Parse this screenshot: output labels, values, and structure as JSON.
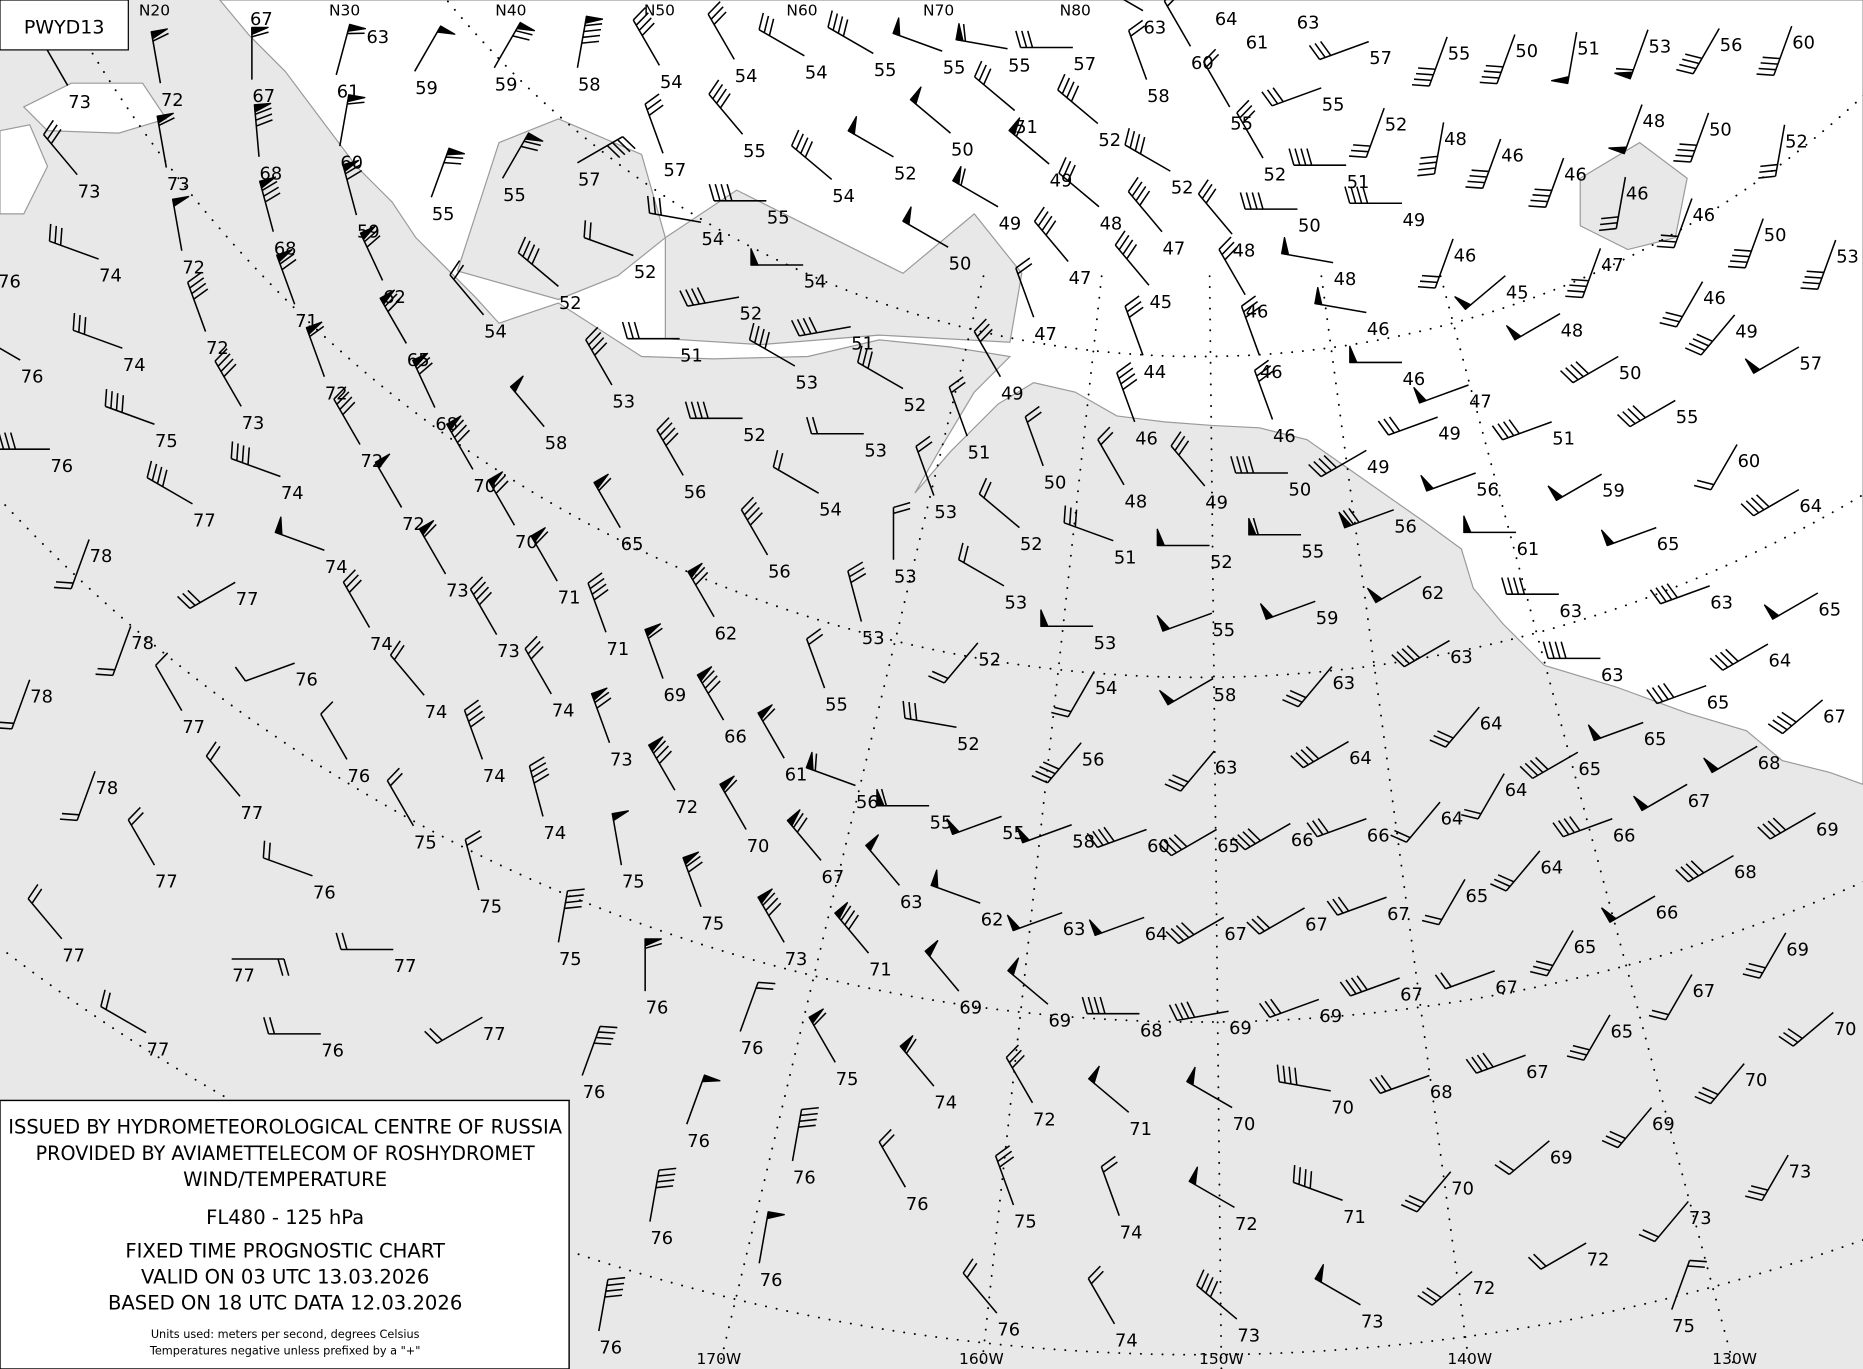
{
  "chart_id": "PWYD13",
  "legend": {
    "line1": "ISSUED BY HYDROMETEOROLOGICAL CENTRE OF RUSSIA",
    "line2": "PROVIDED BY AVIAMETTELECOM OF ROSHYDROMET",
    "line3": "WIND/TEMPERATURE",
    "level": "FL480 - 125 hPa",
    "chart_type": "FIXED TIME PROGNOSTIC CHART",
    "valid": "VALID ON 03 UTC 13.03.2026",
    "based": "BASED ON 18 UTC DATA 12.03.2026",
    "units": "Units used: meters per second, degrees Celsius",
    "note": "Temperatures negative unless prefixed by a \"+\""
  },
  "top_labels": [
    "N20",
    "N30",
    "N40",
    "N50",
    "N60",
    "N70",
    "N80"
  ],
  "bottom_labels": [
    "170W",
    "160W",
    "150W",
    "140W",
    "130W"
  ],
  "colors": {
    "ocean": "#e8e8e8",
    "land": "#ffffff",
    "coast": "#9a9a9a",
    "ink": "#000000"
  },
  "stations_format": [
    "temperature",
    "wind_direction_deg",
    "wind_speed_mps"
  ],
  "stations": [
    [
      "73",
      330,
      15
    ],
    [
      "73",
      320,
      15
    ],
    [
      "74",
      290,
      15
    ],
    [
      "76",
      300,
      10
    ],
    [
      "76",
      300,
      10
    ],
    [
      "74",
      290,
      15
    ],
    [
      "76",
      270,
      20
    ],
    [
      "75",
      290,
      20
    ],
    [
      "77",
      300,
      20
    ],
    [
      "78",
      200,
      10
    ],
    [
      "78",
      200,
      10
    ],
    [
      "78",
      200,
      10
    ],
    [
      "77",
      240,
      15
    ],
    [
      "76",
      250,
      5
    ],
    [
      "77",
      330,
      5
    ],
    [
      "78",
      200,
      10
    ],
    [
      "77",
      320,
      10
    ],
    [
      "77",
      330,
      10
    ],
    [
      "77",
      320,
      10
    ],
    [
      "77",
      90,
      10
    ],
    [
      "77",
      300,
      10
    ],
    [
      "72",
      350,
      30
    ],
    [
      "73",
      350,
      30
    ],
    [
      "72",
      350,
      25
    ],
    [
      "72",
      340,
      20
    ],
    [
      "73",
      330,
      20
    ],
    [
      "74",
      290,
      20
    ],
    [
      "74",
      290,
      25
    ],
    [
      "74",
      330,
      15
    ],
    [
      "74",
      320,
      10
    ],
    [
      "76",
      330,
      5
    ],
    [
      "75",
      330,
      10
    ],
    [
      "76",
      290,
      10
    ],
    [
      "77",
      270,
      10
    ],
    [
      "75",
      345,
      10
    ],
    [
      "76",
      270,
      10
    ],
    [
      "77",
      240,
      10
    ],
    [
      "67",
      0,
      30
    ],
    [
      "68",
      355,
      40
    ],
    [
      "68",
      345,
      40
    ],
    [
      "71",
      340,
      35
    ],
    [
      "72",
      340,
      30
    ],
    [
      "72",
      330,
      20
    ],
    [
      "72",
      330,
      25
    ],
    [
      "73",
      330,
      30
    ],
    [
      "73",
      330,
      20
    ],
    [
      "74",
      330,
      15
    ],
    [
      "74",
      340,
      20
    ],
    [
      "74",
      345,
      20
    ],
    [
      "75",
      10,
      20
    ],
    [
      "75",
      350,
      25
    ],
    [
      "76",
      20,
      20
    ],
    [
      "76",
      0,
      30
    ],
    [
      "61",
      15,
      30
    ],
    [
      "60",
      10,
      30
    ],
    [
      "59",
      345,
      35
    ],
    [
      "62",
      335,
      35
    ],
    [
      "65",
      330,
      35
    ],
    [
      "68",
      335,
      35
    ],
    [
      "70",
      330,
      40
    ],
    [
      "70",
      330,
      35
    ],
    [
      "71",
      330,
      30
    ],
    [
      "71",
      340,
      20
    ],
    [
      "69",
      340,
      30
    ],
    [
      "73",
      340,
      35
    ],
    [
      "72",
      330,
      40
    ],
    [
      "70",
      330,
      30
    ],
    [
      "75",
      340,
      35
    ],
    [
      "73",
      330,
      40
    ],
    [
      "76",
      20,
      10
    ],
    [
      "76",
      20,
      25
    ],
    [
      "59",
      30,
      25
    ],
    [
      "59",
      30,
      35
    ],
    [
      "58",
      10,
      45
    ],
    [
      "55",
      20,
      35
    ],
    [
      "55",
      30,
      35
    ],
    [
      "57",
      60,
      20
    ],
    [
      "57",
      340,
      15
    ],
    [
      "54",
      320,
      10
    ],
    [
      "52",
      310,
      20
    ],
    [
      "52",
      290,
      10
    ],
    [
      "54",
      280,
      15
    ],
    [
      "51",
      270,
      15
    ],
    [
      "52",
      260,
      20
    ],
    [
      "54",
      270,
      25
    ],
    [
      "55",
      270,
      20
    ],
    [
      "55",
      320,
      20
    ],
    [
      "54",
      310,
      20
    ],
    [
      "52",
      300,
      25
    ],
    [
      "54",
      330,
      20
    ],
    [
      "54",
      330,
      15
    ],
    [
      "54",
      300,
      15
    ],
    [
      "55",
      300,
      20
    ],
    [
      "55",
      290,
      25
    ],
    [
      "55",
      280,
      30
    ],
    [
      "57",
      270,
      15
    ],
    [
      "53",
      330,
      20
    ],
    [
      "58",
      320,
      25
    ],
    [
      "56",
      330,
      20
    ],
    [
      "65",
      330,
      30
    ],
    [
      "62",
      330,
      35
    ],
    [
      "66",
      330,
      40
    ],
    [
      "61",
      330,
      30
    ],
    [
      "67",
      320,
      35
    ],
    [
      "71",
      320,
      40
    ],
    [
      "75",
      330,
      30
    ],
    [
      "76",
      10,
      20
    ],
    [
      "76",
      10,
      20
    ],
    [
      "76",
      10,
      25
    ],
    [
      "76",
      10,
      20
    ],
    [
      "74",
      320,
      30
    ],
    [
      "56",
      330,
      20
    ],
    [
      "52",
      270,
      20
    ],
    [
      "53",
      300,
      20
    ],
    [
      "54",
      300,
      10
    ],
    [
      "53",
      270,
      10
    ],
    [
      "52",
      300,
      15
    ],
    [
      "51",
      260,
      20
    ],
    [
      "53",
      345,
      15
    ],
    [
      "53",
      0,
      10
    ],
    [
      "53",
      340,
      10
    ],
    [
      "51",
      340,
      10
    ],
    [
      "52",
      310,
      10
    ],
    [
      "50",
      340,
      10
    ],
    [
      "53",
      300,
      10
    ],
    [
      "52",
      220,
      10
    ],
    [
      "52",
      280,
      15
    ],
    [
      "55",
      340,
      10
    ],
    [
      "56",
      290,
      30
    ],
    [
      "55",
      270,
      30
    ],
    [
      "55",
      250,
      25
    ],
    [
      "63",
      320,
      25
    ],
    [
      "62",
      290,
      25
    ],
    [
      "63",
      250,
      25
    ],
    [
      "69",
      320,
      25
    ],
    [
      "69",
      310,
      25
    ],
    [
      "72",
      330,
      15
    ],
    [
      "71",
      310,
      25
    ],
    [
      "76",
      330,
      10
    ],
    [
      "75",
      340,
      15
    ],
    [
      "74",
      340,
      10
    ],
    [
      "76",
      320,
      10
    ],
    [
      "74",
      330,
      10
    ],
    [
      "50",
      310,
      25
    ],
    [
      "50",
      300,
      25
    ],
    [
      "49",
      300,
      30
    ],
    [
      "49",
      310,
      30
    ],
    [
      "51",
      310,
      15
    ],
    [
      "52",
      310,
      20
    ],
    [
      "52",
      300,
      20
    ],
    [
      "48",
      310,
      15
    ],
    [
      "47",
      320,
      20
    ],
    [
      "47",
      320,
      20
    ],
    [
      "47",
      340,
      10
    ],
    [
      "49",
      330,
      15
    ],
    [
      "53",
      270,
      25
    ],
    [
      "54",
      210,
      10
    ],
    [
      "56",
      220,
      20
    ],
    [
      "58",
      250,
      25
    ],
    [
      "60",
      250,
      20
    ],
    [
      "65",
      240,
      20
    ],
    [
      "64",
      250,
      25
    ],
    [
      "67",
      240,
      20
    ],
    [
      "68",
      270,
      20
    ],
    [
      "69",
      260,
      20
    ],
    [
      "70",
      300,
      25
    ],
    [
      "72",
      300,
      25
    ],
    [
      "73",
      310,
      20
    ],
    [
      "45",
      320,
      20
    ],
    [
      "44",
      340,
      15
    ],
    [
      "46",
      340,
      20
    ],
    [
      "48",
      330,
      10
    ],
    [
      "49",
      320,
      15
    ],
    [
      "48",
      320,
      15
    ],
    [
      "46",
      330,
      15
    ],
    [
      "46",
      340,
      15
    ],
    [
      "46",
      340,
      15
    ],
    [
      "50",
      270,
      20
    ],
    [
      "52",
      270,
      25
    ],
    [
      "51",
      290,
      15
    ],
    [
      "55",
      250,
      25
    ],
    [
      "58",
      240,
      25
    ],
    [
      "63",
      220,
      15
    ],
    [
      "55",
      270,
      30
    ],
    [
      "59",
      250,
      25
    ],
    [
      "63",
      220,
      15
    ],
    [
      "64",
      240,
      20
    ],
    [
      "66",
      240,
      20
    ],
    [
      "66",
      250,
      15
    ],
    [
      "67",
      240,
      15
    ],
    [
      "67",
      250,
      15
    ],
    [
      "69",
      250,
      15
    ],
    [
      "67",
      250,
      20
    ],
    [
      "70",
      280,
      20
    ],
    [
      "71",
      290,
      20
    ],
    [
      "73",
      300,
      25
    ],
    [
      "52",
      330,
      15
    ],
    [
      "50",
      270,
      20
    ],
    [
      "48",
      280,
      25
    ],
    [
      "46",
      280,
      25
    ],
    [
      "46",
      270,
      25
    ],
    [
      "49",
      250,
      15
    ],
    [
      "49",
      240,
      20
    ],
    [
      "56",
      250,
      25
    ],
    [
      "56",
      250,
      35
    ],
    [
      "62",
      240,
      25
    ],
    [
      "63",
      240,
      20
    ],
    [
      "64",
      220,
      15
    ],
    [
      "64",
      210,
      10
    ],
    [
      "64",
      220,
      10
    ],
    [
      "65",
      210,
      10
    ],
    [
      "67",
      250,
      10
    ],
    [
      "68",
      250,
      15
    ],
    [
      "70",
      220,
      15
    ],
    [
      "72",
      230,
      15
    ],
    [
      "64",
      220,
      15
    ],
    [
      "69",
      230,
      10
    ],
    [
      "67",
      250,
      20
    ],
    [
      "72",
      240,
      10
    ],
    [
      "73",
      220,
      10
    ],
    [
      "75",
      20,
      10
    ],
    [
      "73",
      210,
      15
    ],
    [
      "70",
      220,
      15
    ],
    [
      "69",
      220,
      15
    ],
    [
      "65",
      210,
      15
    ],
    [
      "65",
      210,
      15
    ],
    [
      "65",
      240,
      20
    ],
    [
      "65",
      250,
      25
    ],
    [
      "66",
      250,
      20
    ],
    [
      "66",
      240,
      25
    ],
    [
      "68",
      240,
      20
    ],
    [
      "68",
      240,
      25
    ],
    [
      "67",
      240,
      25
    ],
    [
      "69",
      210,
      15
    ],
    [
      "69",
      240,
      20
    ],
    [
      "70",
      230,
      15
    ],
    [
      "67",
      210,
      10
    ],
    [
      "65",
      250,
      20
    ],
    [
      "64",
      240,
      20
    ],
    [
      "67",
      230,
      20
    ],
    [
      "65",
      240,
      25
    ],
    [
      "63",
      250,
      20
    ],
    [
      "63",
      270,
      20
    ],
    [
      "63",
      270,
      20
    ],
    [
      "61",
      270,
      25
    ],
    [
      "65",
      250,
      25
    ],
    [
      "59",
      240,
      25
    ],
    [
      "60",
      210,
      10
    ],
    [
      "64",
      240,
      20
    ],
    [
      "55",
      240,
      20
    ],
    [
      "51",
      250,
      20
    ],
    [
      "47",
      250,
      25
    ],
    [
      "51",
      270,
      20
    ],
    [
      "49",
      270,
      20
    ],
    [
      "46",
      200,
      15
    ],
    [
      "45",
      230,
      25
    ],
    [
      "48",
      240,
      25
    ],
    [
      "50",
      240,
      20
    ],
    [
      "57",
      240,
      25
    ],
    [
      "49",
      220,
      20
    ],
    [
      "46",
      210,
      15
    ],
    [
      "47",
      200,
      20
    ],
    [
      "46",
      200,
      15
    ],
    [
      "46",
      190,
      15
    ],
    [
      "46",
      200,
      20
    ],
    [
      "46",
      200,
      20
    ],
    [
      "48",
      190,
      20
    ],
    [
      "52",
      200,
      15
    ],
    [
      "55",
      250,
      15
    ],
    [
      "50",
      200,
      20
    ],
    [
      "53",
      200,
      20
    ],
    [
      "52",
      190,
      15
    ],
    [
      "50",
      200,
      20
    ],
    [
      "48",
      200,
      25
    ],
    [
      "50",
      200,
      20
    ],
    [
      "55",
      200,
      20
    ],
    [
      "57",
      250,
      15
    ],
    [
      "51",
      190,
      25
    ],
    [
      "53",
      200,
      30
    ],
    [
      "56",
      210,
      20
    ],
    [
      "60",
      200,
      20
    ],
    [
      "60",
      330,
      10
    ],
    [
      "58",
      340,
      10
    ],
    [
      "55",
      330,
      10
    ],
    [
      "63",
      300,
      15
    ],
    [
      "64",
      0,
      0
    ],
    [
      "61",
      0,
      0
    ],
    [
      "63",
      0,
      0
    ],
    [
      "67",
      0,
      0
    ],
    [
      "63",
      0,
      0
    ]
  ]
}
